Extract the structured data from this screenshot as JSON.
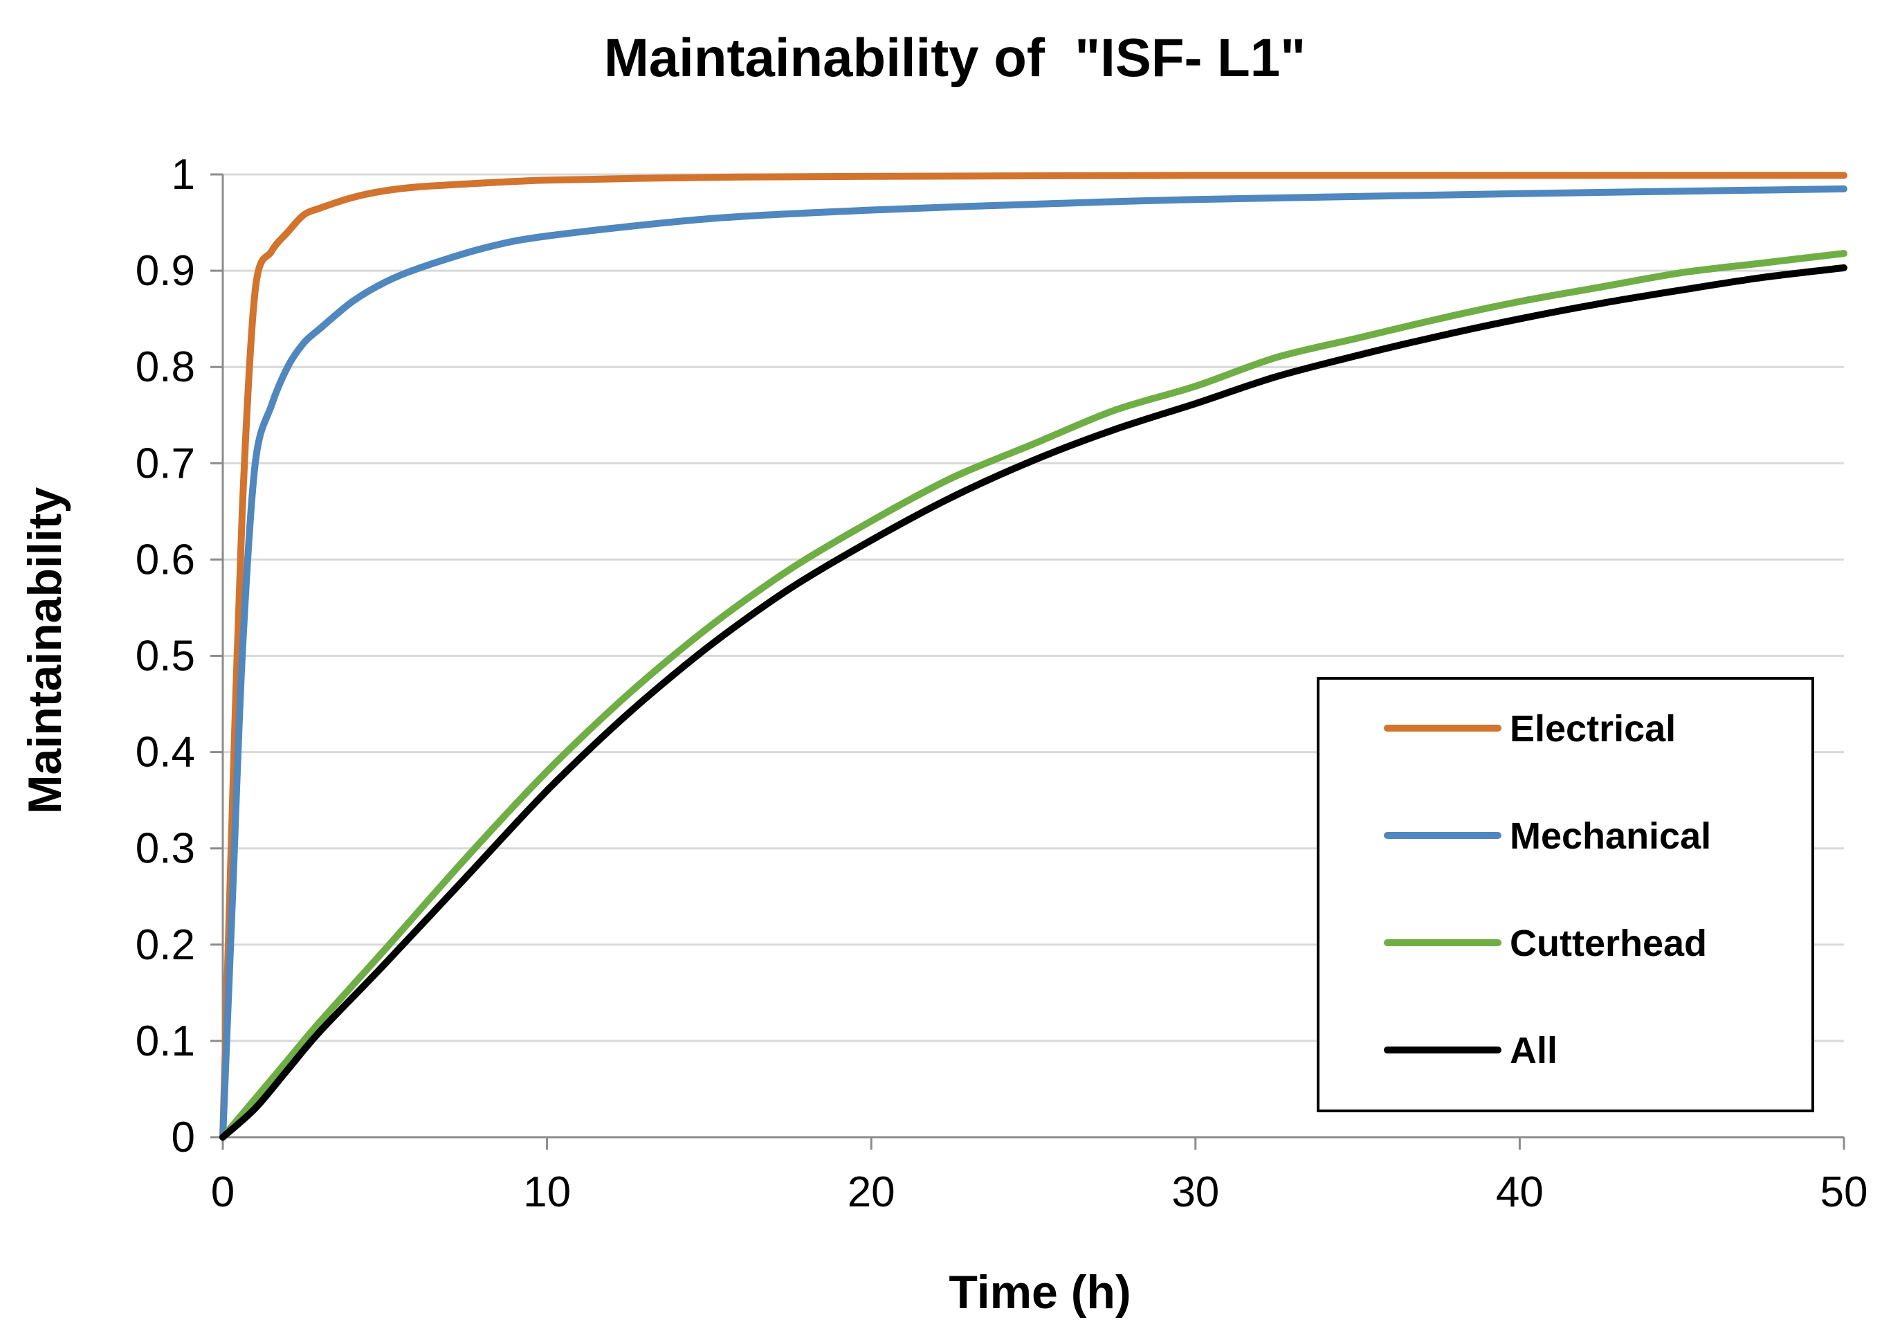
{
  "chart_data": {
    "type": "line",
    "title": "Maintainability of  \"ISF- L1\"",
    "xlabel": "Time (h)",
    "ylabel": "Maintainability",
    "xlim": [
      0,
      50
    ],
    "ylim": [
      0,
      1
    ],
    "x_ticks": [
      "0",
      "10",
      "20",
      "30",
      "40",
      "50"
    ],
    "y_ticks": [
      "0",
      "0.1",
      "0.2",
      "0.3",
      "0.4",
      "0.5",
      "0.6",
      "0.7",
      "0.8",
      "0.9",
      "1"
    ],
    "grid": true,
    "legend_position": "right",
    "series": [
      {
        "name": "Electrical",
        "color": "#D2732E",
        "x": [
          0,
          0.3,
          0.6,
          1,
          1.5,
          2,
          2.5,
          3,
          4,
          5,
          6,
          8,
          10,
          15,
          20,
          30,
          40,
          50
        ],
        "y": [
          0,
          0.35,
          0.65,
          0.88,
          0.92,
          0.94,
          0.958,
          0.965,
          0.976,
          0.983,
          0.987,
          0.991,
          0.994,
          0.997,
          0.998,
          0.999,
          0.999,
          0.999
        ]
      },
      {
        "name": "Mechanical",
        "color": "#4F87BE",
        "x": [
          0,
          0.3,
          0.6,
          1,
          1.5,
          2,
          2.5,
          3,
          4,
          5,
          6,
          8,
          10,
          15,
          20,
          25,
          30,
          40,
          50
        ],
        "y": [
          0,
          0.25,
          0.5,
          0.7,
          0.76,
          0.8,
          0.825,
          0.84,
          0.868,
          0.888,
          0.902,
          0.923,
          0.936,
          0.954,
          0.963,
          0.969,
          0.974,
          0.98,
          0.985
        ]
      },
      {
        "name": "Cutterhead",
        "color": "#6FAE45",
        "x": [
          0,
          1,
          2,
          3,
          5,
          7.5,
          10,
          12.5,
          15,
          17.5,
          20,
          22.5,
          25,
          27.5,
          30,
          32.5,
          35,
          37.5,
          40,
          42.5,
          45,
          47.5,
          50
        ],
        "y": [
          0,
          0.04,
          0.08,
          0.12,
          0.195,
          0.29,
          0.38,
          0.46,
          0.53,
          0.59,
          0.64,
          0.685,
          0.72,
          0.755,
          0.78,
          0.81,
          0.83,
          0.85,
          0.868,
          0.883,
          0.898,
          0.908,
          0.918
        ]
      },
      {
        "name": "All",
        "color": "#000000",
        "x": [
          0,
          1,
          2,
          3,
          5,
          7.5,
          10,
          12.5,
          15,
          17.5,
          20,
          22.5,
          25,
          27.5,
          30,
          32.5,
          35,
          37.5,
          40,
          42.5,
          45,
          47.5,
          50
        ],
        "y": [
          0,
          0.03,
          0.07,
          0.11,
          0.18,
          0.27,
          0.36,
          0.44,
          0.51,
          0.57,
          0.62,
          0.665,
          0.703,
          0.735,
          0.762,
          0.79,
          0.812,
          0.832,
          0.85,
          0.866,
          0.88,
          0.893,
          0.903
        ]
      }
    ]
  }
}
